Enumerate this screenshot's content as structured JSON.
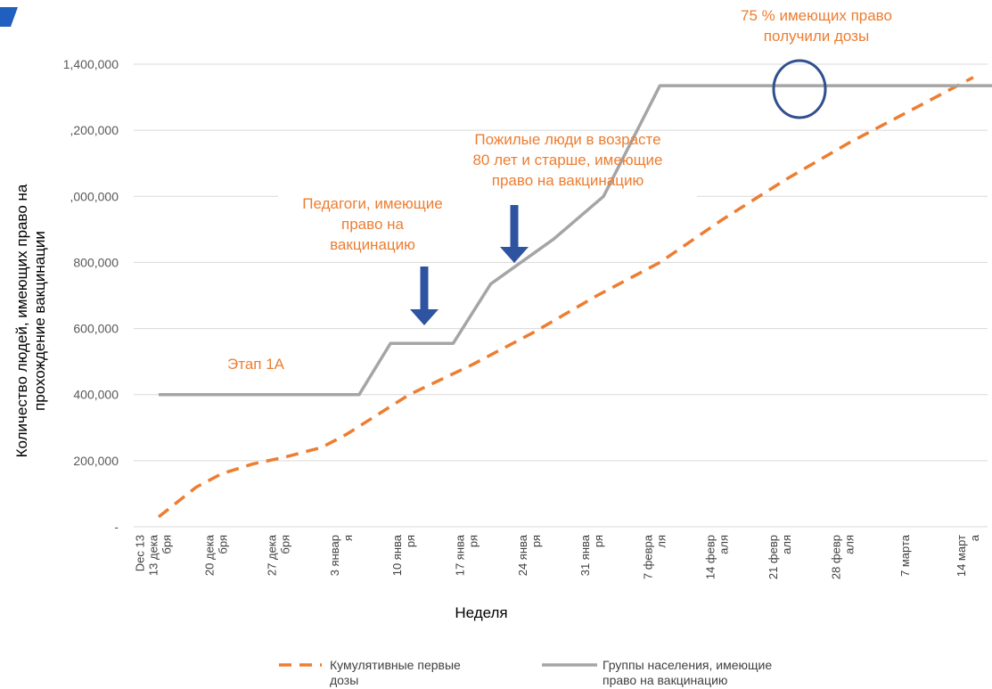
{
  "chart_data": {
    "type": "line",
    "xlabel": "Неделя",
    "ylabel_lines": [
      "Количество людей, имеющих право на",
      "прохождение вакцинации"
    ],
    "ylim": [
      0,
      1400000
    ],
    "yticks": [
      0,
      200000,
      400000,
      600000,
      800000,
      1000000,
      1200000,
      1400000
    ],
    "ytick_labels": [
      "-",
      "200,000",
      "400,000",
      "600,000",
      "800,000",
      ",000,000",
      ",200,000",
      "1,400,000"
    ],
    "categories": [
      [
        "Dec 13",
        "13 дека",
        "бря"
      ],
      [
        "20 дека",
        "бря"
      ],
      [
        "27 дека",
        "бря"
      ],
      [
        "3 январ",
        "я"
      ],
      [
        "10 янва",
        "ря"
      ],
      [
        "17 янва",
        "ря"
      ],
      [
        "24 янва",
        "ря"
      ],
      [
        "31 янва",
        "ря"
      ],
      [
        "7 февра",
        "ля"
      ],
      [
        "14 февр",
        "аля"
      ],
      [
        "21 февр",
        "аля"
      ],
      [
        "28 февр",
        "аля"
      ],
      [
        "7 марта"
      ],
      [
        "14 март",
        "а"
      ]
    ],
    "series": [
      {
        "name": "Кумулятивные первые дозы",
        "style": "dashed",
        "color": "#ed7d31",
        "x": [
          0,
          0.6,
          1,
          1.5,
          2,
          2.6,
          3,
          4,
          5,
          6,
          7,
          8,
          9,
          10,
          11,
          12,
          13
        ],
        "values": [
          30000,
          120000,
          160000,
          190000,
          210000,
          240000,
          280000,
          400000,
          490000,
          590000,
          700000,
          800000,
          930000,
          1050000,
          1160000,
          1260000,
          1360000
        ]
      },
      {
        "name": "Группы населения, имеющие право на вакцинацию",
        "style": "solid",
        "color": "#a5a5a5",
        "x": [
          0,
          3.2,
          3.7,
          4.7,
          5.3,
          6.3,
          7.1,
          8.0,
          13.6
        ],
        "values": [
          400000,
          400000,
          555000,
          555000,
          735000,
          870000,
          1000000,
          1335000,
          1335000
        ]
      }
    ],
    "legend_position": "bottom",
    "legend": [
      {
        "label_lines": [
          "Кумулятивные первые",
          "дозы"
        ]
      },
      {
        "label_lines": [
          "Группы населения, имеющие",
          "право на вакцинацию"
        ]
      }
    ],
    "annotations": [
      {
        "key": "stage",
        "lines": [
          "Этап 1А"
        ]
      },
      {
        "key": "teachers",
        "lines": [
          "Педагоги, имеющие",
          "право на",
          "вакцинацию"
        ]
      },
      {
        "key": "elderly",
        "lines": [
          "Пожилые люди в возрасте",
          "80 лет и старше, имеющие",
          "право на вакцинацию"
        ]
      },
      {
        "key": "target",
        "lines": [
          "75 % имеющих право",
          "получили дозы"
        ]
      }
    ],
    "colors": {
      "grid": "#d9d9d9",
      "arrow": "#2e54a1",
      "circle": "#2f4f8f",
      "logo": "#1f5fbf"
    }
  }
}
